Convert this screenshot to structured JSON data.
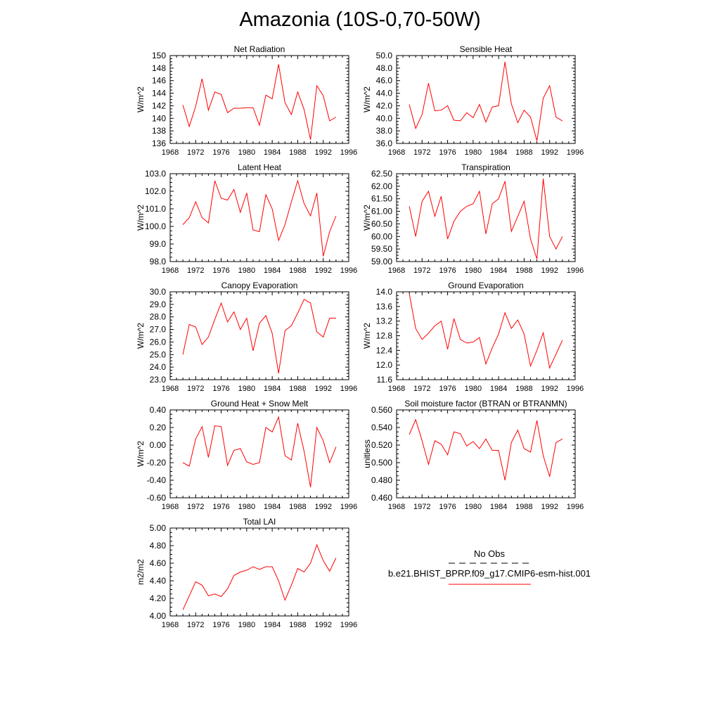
{
  "page": {
    "title": "Amazonia (10S-0,70-50W)"
  },
  "legend": {
    "obs_label": "No Obs",
    "model_label": "b.e21.BHIST_BPRP.f09_g17.CMIP6-esm-hist.001",
    "obs_color": "#000000",
    "model_color": "#ff0000"
  },
  "chart_data": [
    {
      "type": "line",
      "title": "Net Radiation",
      "ylabel": "W/m^2",
      "xlim": [
        1968,
        1996
      ],
      "ylim": [
        136,
        150
      ],
      "xticks": [
        "1968",
        "1972",
        "1976",
        "1980",
        "1984",
        "1988",
        "1992",
        "1996"
      ],
      "yticks": [
        "136",
        "138",
        "140",
        "142",
        "144",
        "146",
        "148",
        "150"
      ],
      "series": [
        {
          "color": "#ff0000",
          "x": [
            1970,
            1971,
            1972,
            1973,
            1974,
            1975,
            1976,
            1977,
            1978,
            1979,
            1980,
            1981,
            1982,
            1983,
            1984,
            1985,
            1986,
            1987,
            1988,
            1989,
            1990,
            1991,
            1992,
            1993,
            1994
          ],
          "values": [
            142.1,
            138.7,
            141.9,
            146.3,
            141.3,
            144.2,
            143.8,
            140.9,
            141.6,
            141.6,
            141.7,
            141.7,
            138.9,
            143.7,
            143.1,
            148.6,
            142.5,
            140.6,
            144.2,
            141.4,
            136.6,
            145.2,
            143.6,
            139.6,
            140.2
          ]
        }
      ]
    },
    {
      "type": "line",
      "title": "Sensible Heat",
      "ylabel": "W/m^2",
      "xlim": [
        1968,
        1996
      ],
      "ylim": [
        36,
        50
      ],
      "xticks": [
        "1968",
        "1972",
        "1976",
        "1980",
        "1984",
        "1988",
        "1992",
        "1996"
      ],
      "yticks": [
        "36.0",
        "38.0",
        "40.0",
        "42.0",
        "44.0",
        "46.0",
        "48.0",
        "50.0"
      ],
      "series": [
        {
          "color": "#ff0000",
          "x": [
            1970,
            1971,
            1972,
            1973,
            1974,
            1975,
            1976,
            1977,
            1978,
            1979,
            1980,
            1981,
            1982,
            1983,
            1984,
            1985,
            1986,
            1987,
            1988,
            1989,
            1990,
            1991,
            1992,
            1993,
            1994
          ],
          "values": [
            42.2,
            38.4,
            40.6,
            45.6,
            41.2,
            41.3,
            42.0,
            39.7,
            39.6,
            40.9,
            40.1,
            42.2,
            39.4,
            41.8,
            42.0,
            49.0,
            42.3,
            39.3,
            41.3,
            40.2,
            36.4,
            43.2,
            45.2,
            40.2,
            39.6
          ]
        }
      ]
    },
    {
      "type": "line",
      "title": "Latent Heat",
      "ylabel": "W/m^2",
      "xlim": [
        1968,
        1996
      ],
      "ylim": [
        98,
        103
      ],
      "xticks": [
        "1968",
        "1972",
        "1976",
        "1980",
        "1984",
        "1988",
        "1992",
        "1996"
      ],
      "yticks": [
        "98.0",
        "99.0",
        "100.0",
        "101.0",
        "102.0",
        "103.0"
      ],
      "series": [
        {
          "color": "#ff0000",
          "x": [
            1970,
            1971,
            1972,
            1973,
            1974,
            1975,
            1976,
            1977,
            1978,
            1979,
            1980,
            1981,
            1982,
            1983,
            1984,
            1985,
            1986,
            1987,
            1988,
            1989,
            1990,
            1991,
            1992,
            1993,
            1994
          ],
          "values": [
            100.1,
            100.5,
            101.4,
            100.5,
            100.2,
            102.6,
            101.6,
            101.5,
            102.1,
            100.8,
            101.9,
            99.8,
            99.7,
            101.8,
            101.0,
            99.2,
            100.1,
            101.4,
            102.6,
            101.3,
            100.6,
            101.9,
            98.3,
            99.7,
            100.6
          ]
        }
      ]
    },
    {
      "type": "line",
      "title": "Transpiration",
      "ylabel": "W/m^2",
      "xlim": [
        1968,
        1996
      ],
      "ylim": [
        59,
        62.5
      ],
      "xticks": [
        "1968",
        "1972",
        "1976",
        "1980",
        "1984",
        "1988",
        "1992",
        "1996"
      ],
      "yticks": [
        "59.00",
        "59.50",
        "60.00",
        "60.50",
        "61.00",
        "61.50",
        "62.00",
        "62.50"
      ],
      "series": [
        {
          "color": "#ff0000",
          "x": [
            1970,
            1971,
            1972,
            1973,
            1974,
            1975,
            1976,
            1977,
            1978,
            1979,
            1980,
            1981,
            1982,
            1983,
            1984,
            1985,
            1986,
            1987,
            1988,
            1989,
            1990,
            1991,
            1992,
            1993,
            1994
          ],
          "values": [
            61.2,
            60.0,
            61.4,
            61.8,
            60.8,
            61.6,
            59.9,
            60.6,
            61.0,
            61.2,
            61.3,
            61.8,
            60.1,
            61.3,
            61.5,
            62.2,
            60.2,
            60.8,
            61.4,
            59.9,
            59.1,
            62.3,
            60.0,
            59.5,
            60.0
          ]
        }
      ]
    },
    {
      "type": "line",
      "title": "Canopy Evaporation",
      "ylabel": "W/m^2",
      "xlim": [
        1968,
        1996
      ],
      "ylim": [
        23,
        30
      ],
      "xticks": [
        "1968",
        "1972",
        "1976",
        "1980",
        "1984",
        "1988",
        "1992",
        "1996"
      ],
      "yticks": [
        "23.0",
        "24.0",
        "25.0",
        "26.0",
        "27.0",
        "28.0",
        "29.0",
        "30.0"
      ],
      "series": [
        {
          "color": "#ff0000",
          "x": [
            1970,
            1971,
            1972,
            1973,
            1974,
            1975,
            1976,
            1977,
            1978,
            1979,
            1980,
            1981,
            1982,
            1983,
            1984,
            1985,
            1986,
            1987,
            1988,
            1989,
            1990,
            1991,
            1992,
            1993,
            1994
          ],
          "values": [
            25.0,
            27.4,
            27.2,
            25.8,
            26.4,
            27.8,
            29.1,
            27.6,
            28.4,
            27.0,
            27.9,
            25.3,
            27.5,
            28.1,
            26.7,
            23.5,
            26.9,
            27.3,
            28.3,
            29.4,
            29.1,
            26.8,
            26.4,
            27.9,
            27.9
          ]
        }
      ]
    },
    {
      "type": "line",
      "title": "Ground Evaporation",
      "ylabel": "W/m^2",
      "xlim": [
        1968,
        1996
      ],
      "ylim": [
        11.6,
        14.0
      ],
      "xticks": [
        "1968",
        "1972",
        "1976",
        "1980",
        "1984",
        "1988",
        "1992",
        "1996"
      ],
      "yticks": [
        "11.6",
        "12.0",
        "12.4",
        "12.8",
        "13.2",
        "13.6",
        "14.0"
      ],
      "series": [
        {
          "color": "#ff0000",
          "x": [
            1970,
            1971,
            1972,
            1973,
            1974,
            1975,
            1976,
            1977,
            1978,
            1979,
            1980,
            1981,
            1982,
            1983,
            1984,
            1985,
            1986,
            1987,
            1988,
            1989,
            1990,
            1991,
            1992,
            1993,
            1994
          ],
          "values": [
            13.95,
            13.0,
            12.7,
            12.87,
            13.07,
            13.2,
            12.43,
            13.27,
            12.7,
            12.6,
            12.63,
            12.75,
            12.03,
            12.47,
            12.85,
            13.43,
            13.0,
            13.23,
            12.85,
            11.97,
            12.4,
            12.88,
            11.92,
            12.3,
            12.68
          ]
        }
      ]
    },
    {
      "type": "line",
      "title": "Ground Heat + Snow Melt",
      "ylabel": "W/m^2",
      "xlim": [
        1968,
        1996
      ],
      "ylim": [
        -0.6,
        0.4
      ],
      "xticks": [
        "1968",
        "1972",
        "1976",
        "1980",
        "1984",
        "1988",
        "1992",
        "1996"
      ],
      "yticks": [
        "-0.60",
        "-0.40",
        "-0.20",
        "0.00",
        "0.20",
        "0.40"
      ],
      "series": [
        {
          "color": "#ff0000",
          "x": [
            1970,
            1971,
            1972,
            1973,
            1974,
            1975,
            1976,
            1977,
            1978,
            1979,
            1980,
            1981,
            1982,
            1983,
            1984,
            1985,
            1986,
            1987,
            1988,
            1989,
            1990,
            1991,
            1992,
            1993,
            1994
          ],
          "values": [
            -0.2,
            -0.24,
            0.07,
            0.21,
            -0.14,
            0.22,
            0.21,
            -0.23,
            -0.06,
            -0.04,
            -0.19,
            -0.22,
            -0.2,
            0.2,
            0.15,
            0.32,
            -0.12,
            -0.17,
            0.25,
            -0.07,
            -0.48,
            0.2,
            0.05,
            -0.2,
            -0.02
          ]
        }
      ]
    },
    {
      "type": "line",
      "title": "Soil moisture factor (BTRAN or BTRANMN)",
      "ylabel": "unitless",
      "xlim": [
        1968,
        1996
      ],
      "ylim": [
        0.46,
        0.56
      ],
      "xticks": [
        "1968",
        "1972",
        "1976",
        "1980",
        "1984",
        "1988",
        "1992",
        "1996"
      ],
      "yticks": [
        "0.460",
        "0.480",
        "0.500",
        "0.520",
        "0.540",
        "0.560"
      ],
      "series": [
        {
          "color": "#ff0000",
          "x": [
            1970,
            1971,
            1972,
            1973,
            1974,
            1975,
            1976,
            1977,
            1978,
            1979,
            1980,
            1981,
            1982,
            1983,
            1984,
            1985,
            1986,
            1987,
            1988,
            1989,
            1990,
            1991,
            1992,
            1993,
            1994
          ],
          "values": [
            0.532,
            0.549,
            0.525,
            0.498,
            0.525,
            0.521,
            0.509,
            0.535,
            0.533,
            0.519,
            0.524,
            0.516,
            0.527,
            0.514,
            0.514,
            0.48,
            0.523,
            0.537,
            0.516,
            0.512,
            0.548,
            0.508,
            0.484,
            0.523,
            0.527
          ]
        }
      ]
    },
    {
      "type": "line",
      "title": "Total LAI",
      "ylabel": "m2/m2",
      "xlim": [
        1968,
        1996
      ],
      "ylim": [
        4.0,
        5.0
      ],
      "xticks": [
        "1968",
        "1972",
        "1976",
        "1980",
        "1984",
        "1988",
        "1992",
        "1996"
      ],
      "yticks": [
        "4.00",
        "4.20",
        "4.40",
        "4.60",
        "4.80",
        "5.00"
      ],
      "series": [
        {
          "color": "#ff0000",
          "x": [
            1970,
            1971,
            1972,
            1973,
            1974,
            1975,
            1976,
            1977,
            1978,
            1979,
            1980,
            1981,
            1982,
            1983,
            1984,
            1985,
            1986,
            1987,
            1988,
            1989,
            1990,
            1991,
            1992,
            1993,
            1994
          ],
          "values": [
            4.07,
            4.23,
            4.39,
            4.35,
            4.23,
            4.25,
            4.22,
            4.31,
            4.46,
            4.5,
            4.52,
            4.56,
            4.53,
            4.56,
            4.56,
            4.4,
            4.18,
            4.35,
            4.54,
            4.5,
            4.6,
            4.81,
            4.63,
            4.51,
            4.66
          ]
        }
      ]
    }
  ]
}
